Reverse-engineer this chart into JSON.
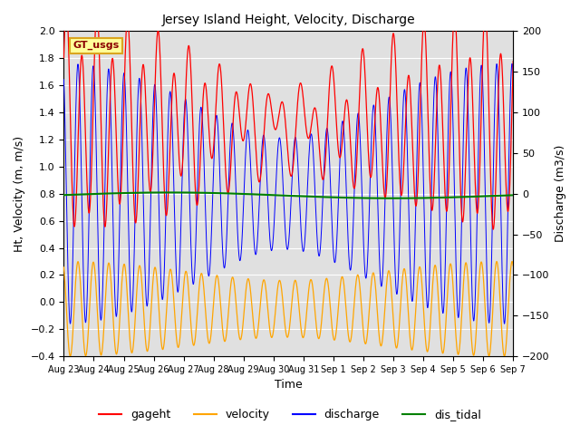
{
  "title": "Jersey Island Height, Velocity, Discharge",
  "xlabel": "Time",
  "ylabel_left": "Ht, Velocity (m, m/s)",
  "ylabel_right": "Discharge (m3/s)",
  "ylim_left": [
    -0.4,
    2.0
  ],
  "ylim_right": [
    -200,
    200
  ],
  "xtick_labels": [
    "Aug 23",
    "Aug 24",
    "Aug 25",
    "Aug 26",
    "Aug 27",
    "Aug 28",
    "Aug 29",
    "Aug 30",
    "Aug 31",
    "Sep 1",
    "Sep 2",
    "Sep 3",
    "Sep 4",
    "Sep 5",
    "Sep 6",
    "Sep 7"
  ],
  "legend_labels": [
    "gageht",
    "velocity",
    "discharge",
    "dis_tidal"
  ],
  "legend_colors": [
    "red",
    "orange",
    "blue",
    "green"
  ],
  "gt_usgs_label": "GT_usgs",
  "background_color": "#e0e0e0",
  "gageht_base": 1.3,
  "gageht_amp1": 0.45,
  "gageht_amp2": 0.25,
  "velocity_base": -0.05,
  "velocity_amp": 0.28,
  "discharge_amp": 160,
  "dis_tidal_value": 0.79,
  "period_M2": 0.5175,
  "period_S2": 0.5,
  "period_K1": 0.9973,
  "figsize": [
    6.4,
    4.8
  ],
  "dpi": 100
}
